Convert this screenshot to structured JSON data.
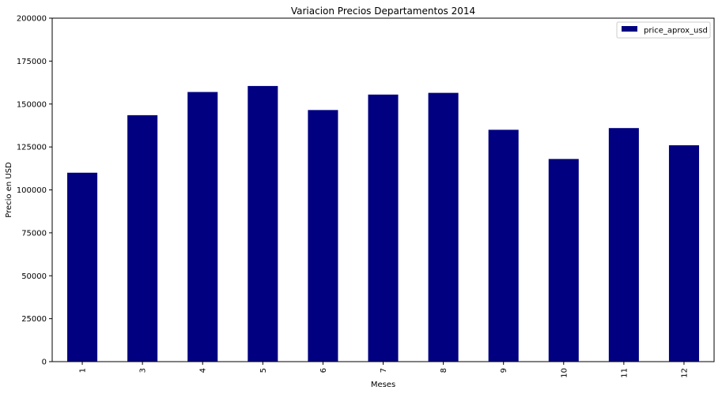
{
  "chart_data": {
    "type": "bar",
    "title": "Variacion Precios Departamentos 2014",
    "xlabel": "Meses",
    "ylabel": "Precio en USD",
    "categories": [
      "1",
      "3",
      "4",
      "5",
      "6",
      "7",
      "8",
      "9",
      "10",
      "11",
      "12"
    ],
    "series": [
      {
        "name": "price_aprox_usd",
        "color": "#000080",
        "values": [
          110000,
          143500,
          157000,
          160500,
          146500,
          155500,
          156500,
          135000,
          118000,
          136000,
          126000
        ]
      }
    ],
    "ylim": [
      0,
      200000
    ],
    "yticks": [
      "0",
      "25000",
      "50000",
      "75000",
      "100000",
      "125000",
      "150000",
      "175000",
      "200000"
    ],
    "grid": false,
    "legend_position": "top-right",
    "xtick_rotation": "vertical"
  }
}
